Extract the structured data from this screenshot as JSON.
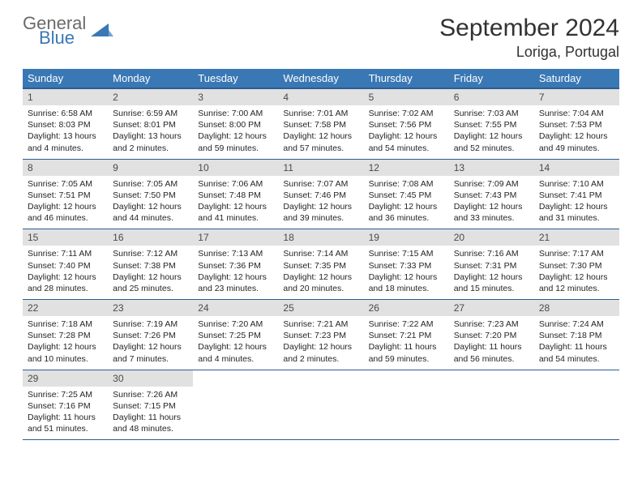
{
  "logo": {
    "general": "General",
    "blue": "Blue"
  },
  "header": {
    "title": "September 2024",
    "location": "Loriga, Portugal"
  },
  "colors": {
    "header_bg": "#3a78b5",
    "header_rule": "#2d5d90",
    "daynum_bg": "#e1e1e1",
    "page_bg": "#ffffff",
    "text": "#252525",
    "title_text": "#323232"
  },
  "typography": {
    "title_fontsize": 30,
    "location_fontsize": 18,
    "dayheader_fontsize": 13,
    "daynum_fontsize": 12,
    "body_fontsize": 10.5
  },
  "calendar": {
    "day_headers": [
      "Sunday",
      "Monday",
      "Tuesday",
      "Wednesday",
      "Thursday",
      "Friday",
      "Saturday"
    ],
    "weeks": [
      [
        {
          "date": "1",
          "sunrise": "6:58 AM",
          "sunset": "8:03 PM",
          "daylight": "13 hours and 4 minutes."
        },
        {
          "date": "2",
          "sunrise": "6:59 AM",
          "sunset": "8:01 PM",
          "daylight": "13 hours and 2 minutes."
        },
        {
          "date": "3",
          "sunrise": "7:00 AM",
          "sunset": "8:00 PM",
          "daylight": "12 hours and 59 minutes."
        },
        {
          "date": "4",
          "sunrise": "7:01 AM",
          "sunset": "7:58 PM",
          "daylight": "12 hours and 57 minutes."
        },
        {
          "date": "5",
          "sunrise": "7:02 AM",
          "sunset": "7:56 PM",
          "daylight": "12 hours and 54 minutes."
        },
        {
          "date": "6",
          "sunrise": "7:03 AM",
          "sunset": "7:55 PM",
          "daylight": "12 hours and 52 minutes."
        },
        {
          "date": "7",
          "sunrise": "7:04 AM",
          "sunset": "7:53 PM",
          "daylight": "12 hours and 49 minutes."
        }
      ],
      [
        {
          "date": "8",
          "sunrise": "7:05 AM",
          "sunset": "7:51 PM",
          "daylight": "12 hours and 46 minutes."
        },
        {
          "date": "9",
          "sunrise": "7:05 AM",
          "sunset": "7:50 PM",
          "daylight": "12 hours and 44 minutes."
        },
        {
          "date": "10",
          "sunrise": "7:06 AM",
          "sunset": "7:48 PM",
          "daylight": "12 hours and 41 minutes."
        },
        {
          "date": "11",
          "sunrise": "7:07 AM",
          "sunset": "7:46 PM",
          "daylight": "12 hours and 39 minutes."
        },
        {
          "date": "12",
          "sunrise": "7:08 AM",
          "sunset": "7:45 PM",
          "daylight": "12 hours and 36 minutes."
        },
        {
          "date": "13",
          "sunrise": "7:09 AM",
          "sunset": "7:43 PM",
          "daylight": "12 hours and 33 minutes."
        },
        {
          "date": "14",
          "sunrise": "7:10 AM",
          "sunset": "7:41 PM",
          "daylight": "12 hours and 31 minutes."
        }
      ],
      [
        {
          "date": "15",
          "sunrise": "7:11 AM",
          "sunset": "7:40 PM",
          "daylight": "12 hours and 28 minutes."
        },
        {
          "date": "16",
          "sunrise": "7:12 AM",
          "sunset": "7:38 PM",
          "daylight": "12 hours and 25 minutes."
        },
        {
          "date": "17",
          "sunrise": "7:13 AM",
          "sunset": "7:36 PM",
          "daylight": "12 hours and 23 minutes."
        },
        {
          "date": "18",
          "sunrise": "7:14 AM",
          "sunset": "7:35 PM",
          "daylight": "12 hours and 20 minutes."
        },
        {
          "date": "19",
          "sunrise": "7:15 AM",
          "sunset": "7:33 PM",
          "daylight": "12 hours and 18 minutes."
        },
        {
          "date": "20",
          "sunrise": "7:16 AM",
          "sunset": "7:31 PM",
          "daylight": "12 hours and 15 minutes."
        },
        {
          "date": "21",
          "sunrise": "7:17 AM",
          "sunset": "7:30 PM",
          "daylight": "12 hours and 12 minutes."
        }
      ],
      [
        {
          "date": "22",
          "sunrise": "7:18 AM",
          "sunset": "7:28 PM",
          "daylight": "12 hours and 10 minutes."
        },
        {
          "date": "23",
          "sunrise": "7:19 AM",
          "sunset": "7:26 PM",
          "daylight": "12 hours and 7 minutes."
        },
        {
          "date": "24",
          "sunrise": "7:20 AM",
          "sunset": "7:25 PM",
          "daylight": "12 hours and 4 minutes."
        },
        {
          "date": "25",
          "sunrise": "7:21 AM",
          "sunset": "7:23 PM",
          "daylight": "12 hours and 2 minutes."
        },
        {
          "date": "26",
          "sunrise": "7:22 AM",
          "sunset": "7:21 PM",
          "daylight": "11 hours and 59 minutes."
        },
        {
          "date": "27",
          "sunrise": "7:23 AM",
          "sunset": "7:20 PM",
          "daylight": "11 hours and 56 minutes."
        },
        {
          "date": "28",
          "sunrise": "7:24 AM",
          "sunset": "7:18 PM",
          "daylight": "11 hours and 54 minutes."
        }
      ],
      [
        {
          "date": "29",
          "sunrise": "7:25 AM",
          "sunset": "7:16 PM",
          "daylight": "11 hours and 51 minutes."
        },
        {
          "date": "30",
          "sunrise": "7:26 AM",
          "sunset": "7:15 PM",
          "daylight": "11 hours and 48 minutes."
        },
        null,
        null,
        null,
        null,
        null
      ]
    ]
  },
  "labels": {
    "sunrise_prefix": "Sunrise: ",
    "sunset_prefix": "Sunset: ",
    "daylight_prefix": "Daylight: "
  }
}
